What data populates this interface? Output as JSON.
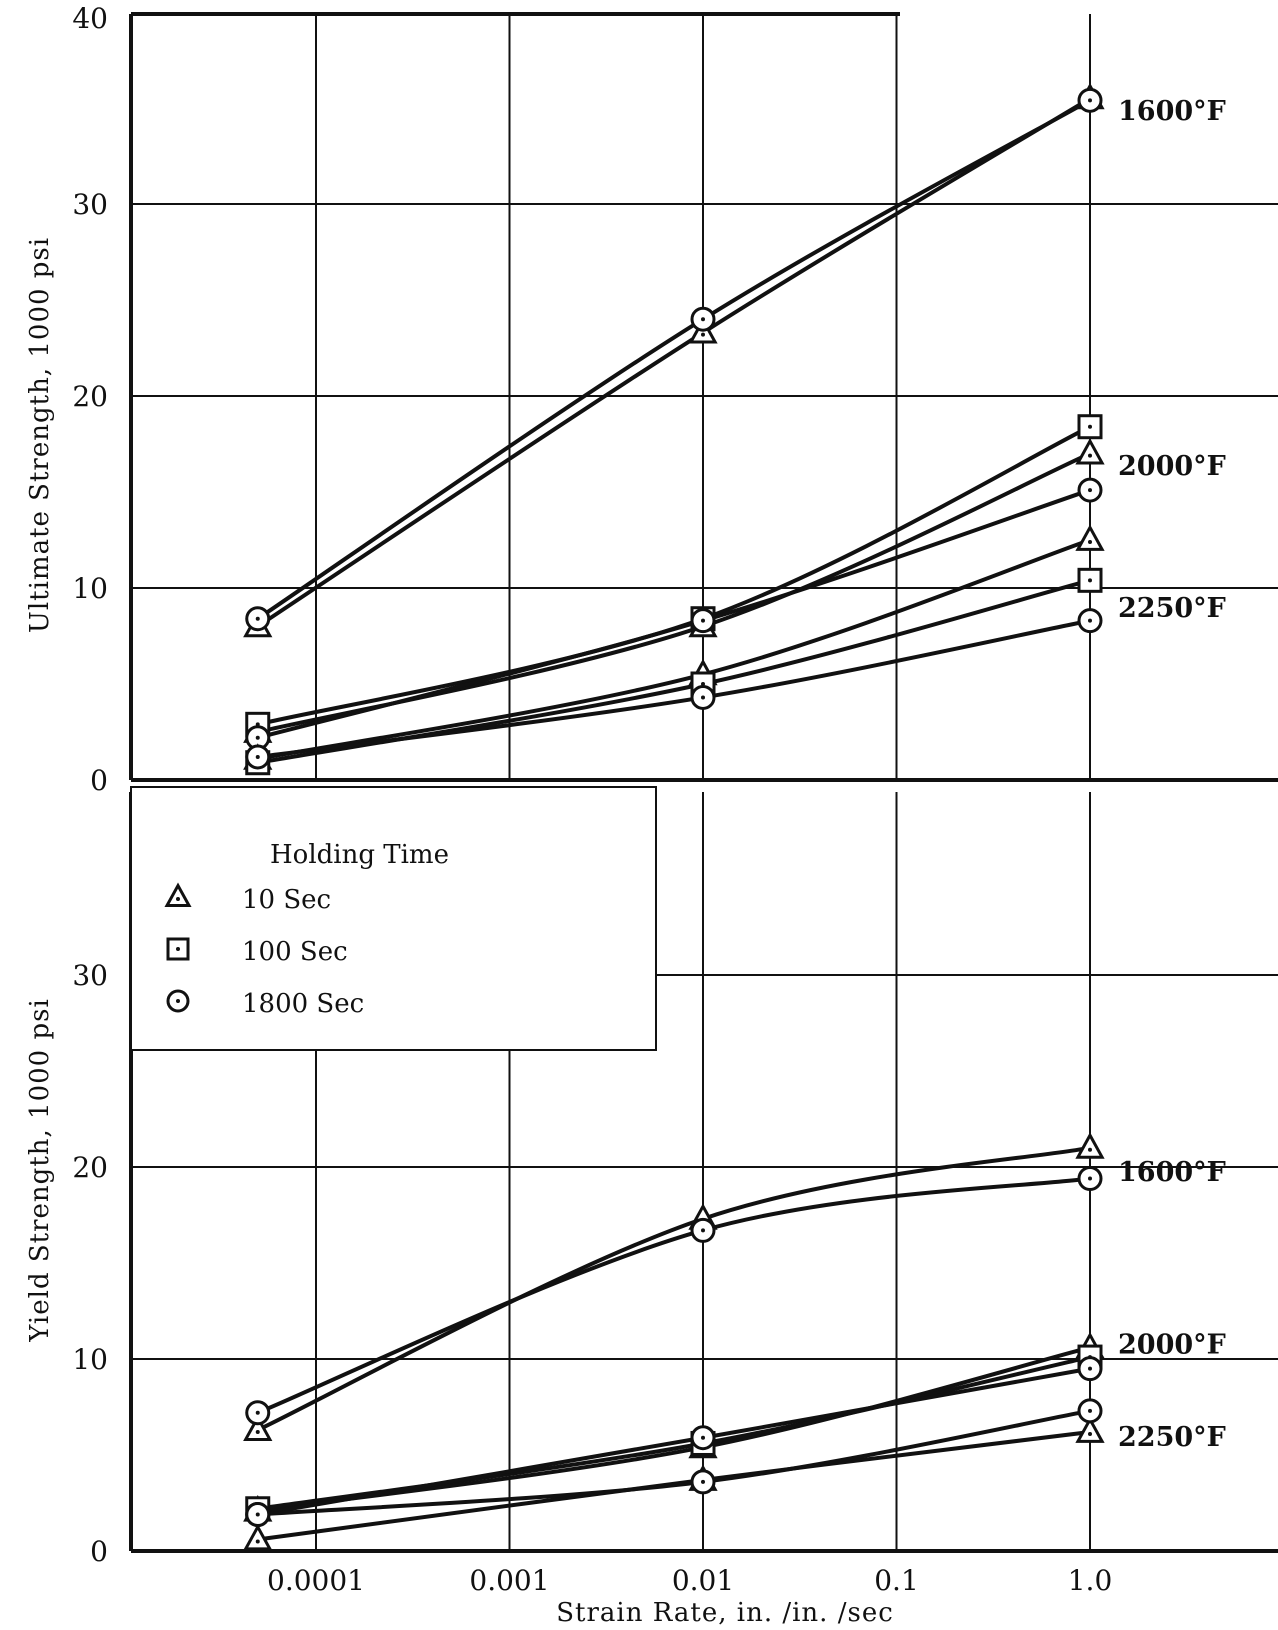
{
  "chart_data": [
    {
      "type": "line",
      "panel": "top",
      "ylabel": "Ultimate Strength, 1000 psi",
      "xlabel": "",
      "x_scale": "log",
      "ylim": [
        0,
        40
      ],
      "y_ticks": [
        "0",
        "10",
        "20",
        "30",
        "40"
      ],
      "grid": true,
      "series": [
        {
          "temp": "1600°F",
          "holding_time": "10 Sec",
          "marker": "triangle",
          "x": [
            5e-05,
            0.01,
            1.0
          ],
          "y": [
            8.0,
            23.3,
            35.5
          ]
        },
        {
          "temp": "1600°F",
          "holding_time": "1800 Sec",
          "marker": "circle",
          "x": [
            5e-05,
            0.01,
            1.0
          ],
          "y": [
            8.4,
            24.0,
            35.4
          ]
        },
        {
          "temp": "2000°F",
          "holding_time": "10 Sec",
          "marker": "triangle",
          "x": [
            5e-05,
            0.01,
            1.0
          ],
          "y": [
            2.5,
            8.0,
            17.0
          ]
        },
        {
          "temp": "2000°F",
          "holding_time": "100 Sec",
          "marker": "square",
          "x": [
            5e-05,
            0.01,
            1.0
          ],
          "y": [
            2.9,
            8.4,
            18.4
          ]
        },
        {
          "temp": "2000°F",
          "holding_time": "1800 Sec",
          "marker": "circle",
          "x": [
            5e-05,
            0.01,
            1.0
          ],
          "y": [
            2.2,
            8.3,
            15.1
          ]
        },
        {
          "temp": "2250°F",
          "holding_time": "10 Sec",
          "marker": "triangle",
          "x": [
            5e-05,
            0.01,
            1.0
          ],
          "y": [
            1.1,
            5.5,
            12.5
          ]
        },
        {
          "temp": "2250°F",
          "holding_time": "100 Sec",
          "marker": "square",
          "x": [
            5e-05,
            0.01,
            1.0
          ],
          "y": [
            0.9,
            5.0,
            10.4
          ]
        },
        {
          "temp": "2250°F",
          "holding_time": "1800 Sec",
          "marker": "circle",
          "x": [
            5e-05,
            0.01,
            1.0
          ],
          "y": [
            1.2,
            4.3,
            8.3
          ]
        }
      ],
      "curve_labels": [
        "1600°F",
        "2000°F",
        "2250°F"
      ]
    },
    {
      "type": "line",
      "panel": "bottom",
      "ylabel": "Yield Strength, 1000 psi",
      "xlabel": "Strain Rate, in. /in. /sec",
      "x_scale": "log",
      "x_ticks": [
        "0.0001",
        "0.001",
        "0.01",
        "0.1",
        "1.0"
      ],
      "ylim": [
        0,
        40
      ],
      "y_ticks": [
        "0",
        "10",
        "20",
        "30"
      ],
      "grid": true,
      "legend_position": "top-left",
      "series": [
        {
          "temp": "1600°F",
          "holding_time": "10 Sec",
          "marker": "triangle",
          "x": [
            5e-05,
            0.01,
            1.0
          ],
          "y": [
            6.3,
            17.3,
            21.0
          ]
        },
        {
          "temp": "1600°F",
          "holding_time": "1800 Sec",
          "marker": "circle",
          "x": [
            5e-05,
            0.01,
            1.0
          ],
          "y": [
            7.2,
            16.7,
            19.4
          ]
        },
        {
          "temp": "2000°F",
          "holding_time": "10 Sec",
          "marker": "triangle",
          "x": [
            5e-05,
            0.01,
            1.0
          ],
          "y": [
            2.1,
            5.4,
            10.6
          ]
        },
        {
          "temp": "2000°F",
          "holding_time": "100 Sec",
          "marker": "square",
          "x": [
            5e-05,
            0.01,
            1.0
          ],
          "y": [
            2.2,
            5.6,
            10.1
          ]
        },
        {
          "temp": "2000°F",
          "holding_time": "1800 Sec",
          "marker": "circle",
          "x": [
            5e-05,
            0.01,
            1.0
          ],
          "y": [
            1.9,
            5.9,
            9.5
          ]
        },
        {
          "temp": "2250°F",
          "holding_time": "10 Sec",
          "marker": "triangle",
          "x": [
            5e-05,
            0.01,
            1.0
          ],
          "y": [
            0.6,
            3.7,
            6.2
          ]
        },
        {
          "temp": "2250°F",
          "holding_time": "1800 Sec",
          "marker": "circle",
          "x": [
            5e-05,
            0.01,
            1.0
          ],
          "y": [
            1.9,
            3.6,
            7.3
          ]
        }
      ],
      "curve_labels": [
        "1600°F",
        "2000°F",
        "2250°F"
      ]
    }
  ],
  "legend": {
    "title": "Holding Time",
    "items": [
      {
        "marker": "triangle",
        "label": "10 Sec"
      },
      {
        "marker": "square",
        "label": "100 Sec"
      },
      {
        "marker": "circle",
        "label": "1800 Sec"
      }
    ]
  }
}
